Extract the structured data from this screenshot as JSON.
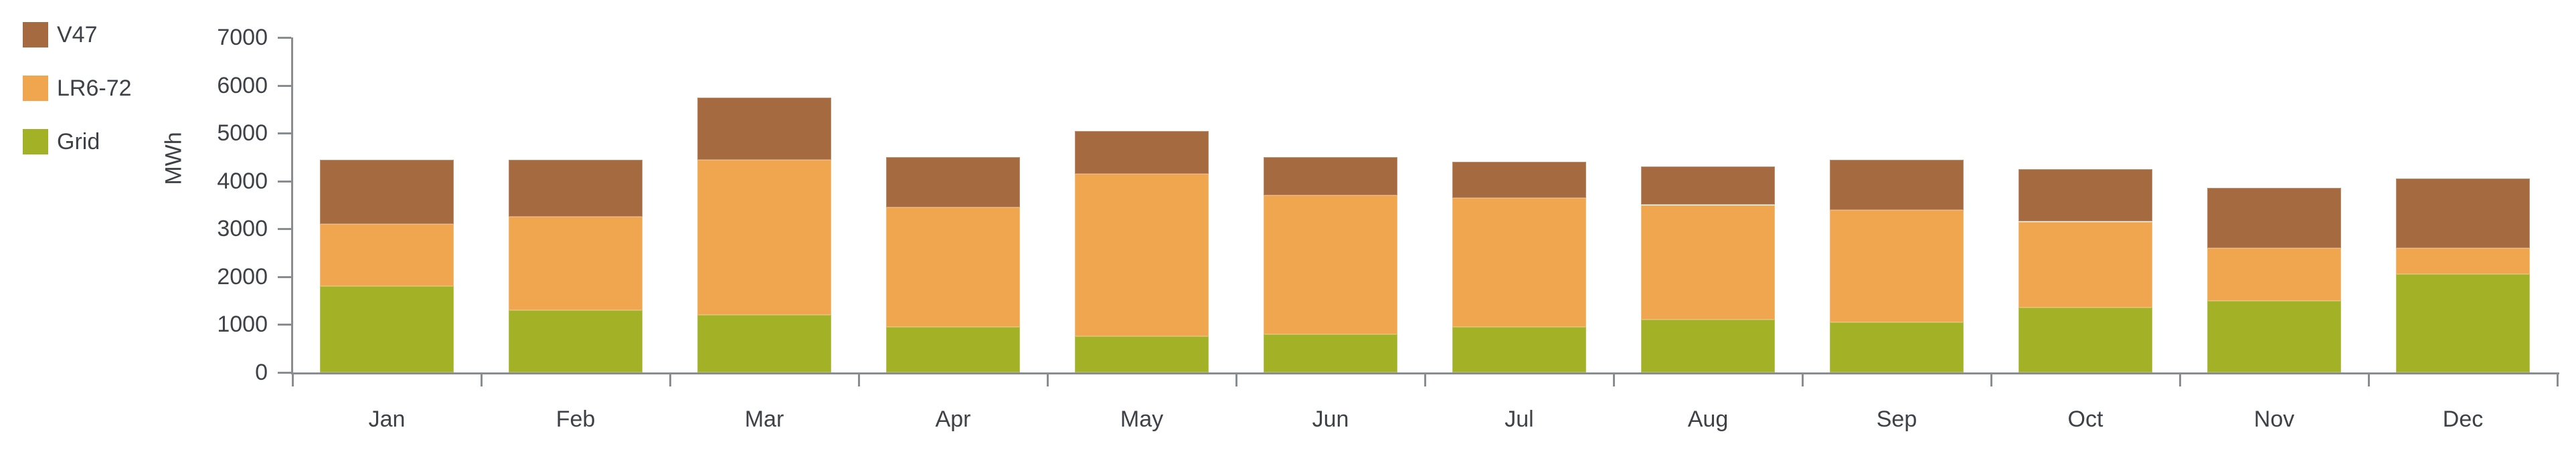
{
  "colors": {
    "axis": "#8a8d90",
    "text": "#3e4247",
    "background": "#ffffff"
  },
  "chart_data": {
    "type": "bar",
    "stacked": true,
    "title": "",
    "xlabel": "",
    "ylabel": "MWh",
    "ylim": [
      0,
      7000
    ],
    "yticks": [
      0,
      1000,
      2000,
      3000,
      4000,
      5000,
      6000,
      7000
    ],
    "grid": false,
    "legend_position": "top-left",
    "legend": [
      "V47",
      "LR6-72",
      "Grid"
    ],
    "categories": [
      "Jan",
      "Feb",
      "Mar",
      "Apr",
      "May",
      "Jun",
      "Jul",
      "Aug",
      "Sep",
      "Oct",
      "Nov",
      "Dec"
    ],
    "series": [
      {
        "name": "Grid",
        "color": "#a3b127",
        "values": [
          1800,
          1300,
          1200,
          950,
          750,
          800,
          950,
          1100,
          1050,
          1350,
          1500,
          2050
        ]
      },
      {
        "name": "LR6-72",
        "color": "#f0a64f",
        "values": [
          1300,
          1950,
          3250,
          2500,
          3400,
          2900,
          2700,
          2400,
          2350,
          1800,
          1100,
          550
        ]
      },
      {
        "name": "V47",
        "color": "#a56a3f",
        "values": [
          1350,
          1200,
          1300,
          1050,
          900,
          800,
          750,
          800,
          1050,
          1100,
          1250,
          1450
        ]
      }
    ],
    "totals": [
      4450,
      4450,
      5750,
      4500,
      5050,
      4500,
      4400,
      4300,
      4450,
      4250,
      3850,
      4050
    ]
  }
}
